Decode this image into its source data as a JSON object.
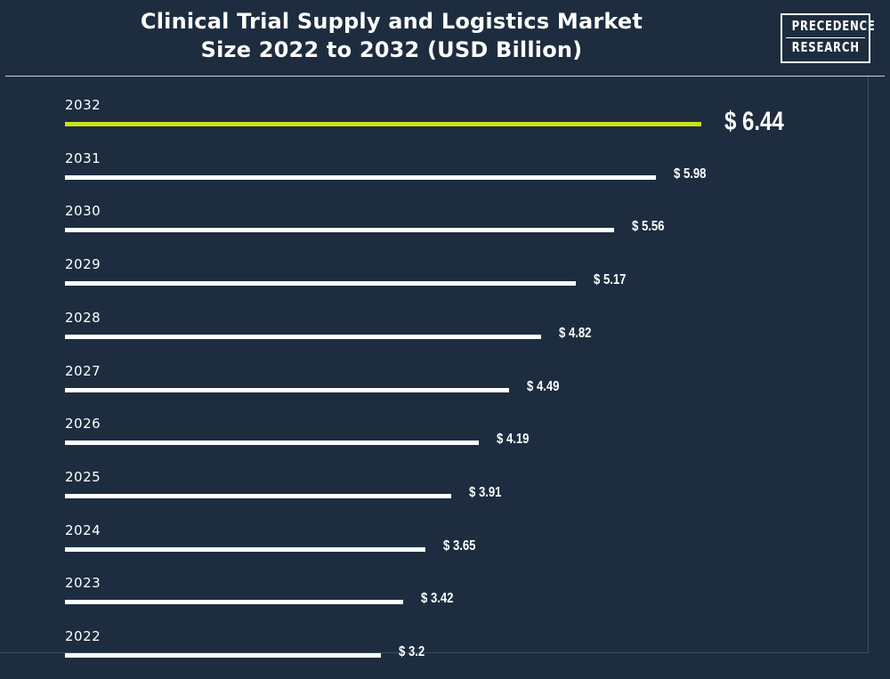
{
  "header": {
    "title_line1": "Clinical Trial Supply and Logistics Market",
    "title_line2": "Size 2022 to 2032 (USD Billion)",
    "logo_line1": "PRECEDENCE",
    "logo_line2": "RESEARCH"
  },
  "colors": {
    "background": "#1d2d3f",
    "bar": "#ffffff",
    "highlight_bar": "#cde01d"
  },
  "chart_data": {
    "type": "bar",
    "orientation": "horizontal",
    "title": "Clinical Trial Supply and Logistics Market Size 2022 to 2032 (USD Billion)",
    "categories": [
      "2032",
      "2031",
      "2030",
      "2029",
      "2028",
      "2027",
      "2026",
      "2025",
      "2024",
      "2023",
      "2022"
    ],
    "values": [
      6.44,
      5.98,
      5.56,
      5.17,
      4.82,
      4.49,
      4.19,
      3.91,
      3.65,
      3.42,
      3.2
    ],
    "value_labels": [
      "$ 6.44",
      "$ 5.98",
      "$ 5.56",
      "$ 5.17",
      "$ 4.82",
      "$ 4.49",
      "$ 4.19",
      "$ 3.91",
      "$ 3.65",
      "$ 3.42",
      "$ 3.2"
    ],
    "highlighted_category": "2032",
    "grid": false,
    "legend": "none"
  }
}
